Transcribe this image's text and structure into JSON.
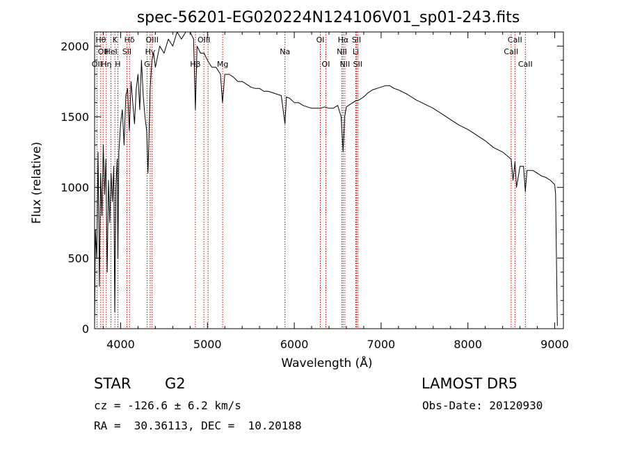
{
  "chart_data": {
    "type": "line",
    "title": "spec-56201-EG020224N124106V01_sp01-243.fits",
    "xlabel": "Wavelength (Å)",
    "ylabel": "Flux (relative)",
    "xlim": [
      3700,
      9100
    ],
    "ylim": [
      0,
      2100
    ],
    "xticks": [
      4000,
      5000,
      6000,
      7000,
      8000,
      9000
    ],
    "yticks": [
      0,
      500,
      1000,
      1500,
      2000
    ],
    "x_minor_step": 200,
    "y_minor_step": 100,
    "grid": false,
    "line_color": "#000000",
    "marker_color": "#cc0000",
    "series": [
      {
        "x": [
          3700,
          3710,
          3725,
          3740,
          3755,
          3770,
          3785,
          3800,
          3815,
          3830,
          3845,
          3860,
          3875,
          3890,
          3905,
          3920,
          3932,
          3945,
          3960,
          3968,
          3980,
          4000,
          4020,
          4040,
          4060,
          4080,
          4100,
          4120,
          4140,
          4160,
          4180,
          4200,
          4220,
          4240,
          4260,
          4280,
          4300,
          4315,
          4330,
          4340,
          4360,
          4380,
          4400,
          4450,
          4500,
          4550,
          4600,
          4650,
          4700,
          4750,
          4800,
          4840,
          4861,
          4880,
          4920,
          4960,
          5000,
          5050,
          5100,
          5150,
          5173,
          5200,
          5250,
          5300,
          5350,
          5400,
          5450,
          5500,
          5550,
          5600,
          5650,
          5700,
          5750,
          5800,
          5850,
          5893,
          5910,
          5950,
          6000,
          6050,
          6100,
          6150,
          6200,
          6250,
          6300,
          6350,
          6400,
          6450,
          6500,
          6540,
          6563,
          6580,
          6600,
          6650,
          6700,
          6750,
          6800,
          6850,
          6900,
          6950,
          7000,
          7050,
          7100,
          7150,
          7200,
          7300,
          7400,
          7500,
          7600,
          7700,
          7800,
          7900,
          8000,
          8100,
          8200,
          8300,
          8400,
          8498,
          8520,
          8542,
          8560,
          8600,
          8640,
          8662,
          8680,
          8750,
          8800,
          8850,
          8900,
          8950,
          9000,
          9010,
          9020,
          9030
        ],
        "y": [
          30,
          700,
          500,
          1250,
          300,
          1100,
          800,
          1300,
          950,
          1200,
          400,
          1050,
          750,
          1100,
          900,
          1150,
          120,
          1000,
          1200,
          500,
          1250,
          1450,
          1550,
          1300,
          1650,
          1700,
          1400,
          1750,
          1600,
          1450,
          1700,
          1800,
          1550,
          1900,
          1650,
          1500,
          1400,
          1100,
          1450,
          1700,
          1900,
          1950,
          1850,
          2000,
          1950,
          2050,
          2000,
          2100,
          2050,
          2100,
          2100,
          2050,
          1550,
          2000,
          1950,
          1950,
          1900,
          1850,
          1850,
          1800,
          1600,
          1800,
          1800,
          1780,
          1750,
          1750,
          1730,
          1710,
          1700,
          1700,
          1680,
          1680,
          1670,
          1660,
          1650,
          1450,
          1640,
          1630,
          1600,
          1600,
          1580,
          1570,
          1560,
          1560,
          1560,
          1570,
          1560,
          1560,
          1580,
          1500,
          1250,
          1500,
          1570,
          1590,
          1610,
          1620,
          1640,
          1670,
          1690,
          1700,
          1710,
          1720,
          1720,
          1700,
          1690,
          1660,
          1620,
          1590,
          1560,
          1520,
          1480,
          1440,
          1410,
          1370,
          1330,
          1280,
          1250,
          1200,
          1050,
          1180,
          1000,
          1150,
          1150,
          970,
          1120,
          1120,
          1100,
          1080,
          1070,
          1050,
          1020,
          950,
          500,
          20
        ]
      }
    ],
    "line_markers": [
      {
        "wavelength": 3727,
        "label": "OII",
        "row": 2
      },
      {
        "wavelength": 3771,
        "label": "Hθ",
        "row": 0
      },
      {
        "wavelength": 3798,
        "label": "OII",
        "row": 1
      },
      {
        "wavelength": 3835,
        "label": "Hη",
        "row": 2
      },
      {
        "wavelength": 3889,
        "label": "HeI",
        "row": 1
      },
      {
        "wavelength": 3934,
        "label": "K",
        "row": 0
      },
      {
        "wavelength": 3968,
        "label": "H",
        "row": 2
      },
      {
        "wavelength": 4072,
        "label": "SII",
        "row": 1
      },
      {
        "wavelength": 4102,
        "label": "Hδ",
        "row": 0
      },
      {
        "wavelength": 4304,
        "label": "G",
        "row": 2
      },
      {
        "wavelength": 4340,
        "label": "Hγ",
        "row": 1
      },
      {
        "wavelength": 4363,
        "label": "OIII",
        "row": 0
      },
      {
        "wavelength": 4861,
        "label": "Hβ",
        "row": 2
      },
      {
        "wavelength": 4959,
        "label": "OIII",
        "row": 0
      },
      {
        "wavelength": 5007,
        "label": "",
        "row": 0
      },
      {
        "wavelength": 5175,
        "label": "Mg",
        "row": 2
      },
      {
        "wavelength": 5893,
        "label": "Na",
        "row": 1
      },
      {
        "wavelength": 6300,
        "label": "OI",
        "row": 0
      },
      {
        "wavelength": 6364,
        "label": "OI",
        "row": 2
      },
      {
        "wavelength": 6548,
        "label": "NII",
        "row": 1
      },
      {
        "wavelength": 6563,
        "label": "Hα",
        "row": 0
      },
      {
        "wavelength": 6583,
        "label": "NII",
        "row": 2
      },
      {
        "wavelength": 6708,
        "label": "Li",
        "row": 1
      },
      {
        "wavelength": 6716,
        "label": "SII",
        "row": 0
      },
      {
        "wavelength": 6731,
        "label": "SII",
        "row": 2
      },
      {
        "wavelength": 8498,
        "label": "CaII",
        "row": 1
      },
      {
        "wavelength": 8542,
        "label": "CaII",
        "row": 0
      },
      {
        "wavelength": 8662,
        "label": "CaII",
        "row": 2
      }
    ]
  },
  "footer": {
    "object_type": "STAR",
    "subclass": "G2",
    "survey": "LAMOST DR5",
    "redshift": "cz = -126.6 ± 6.2 km/s",
    "obs_date": "Obs-Date: 20120930",
    "coords": "RA =  30.36113, DEC =  10.20188"
  }
}
